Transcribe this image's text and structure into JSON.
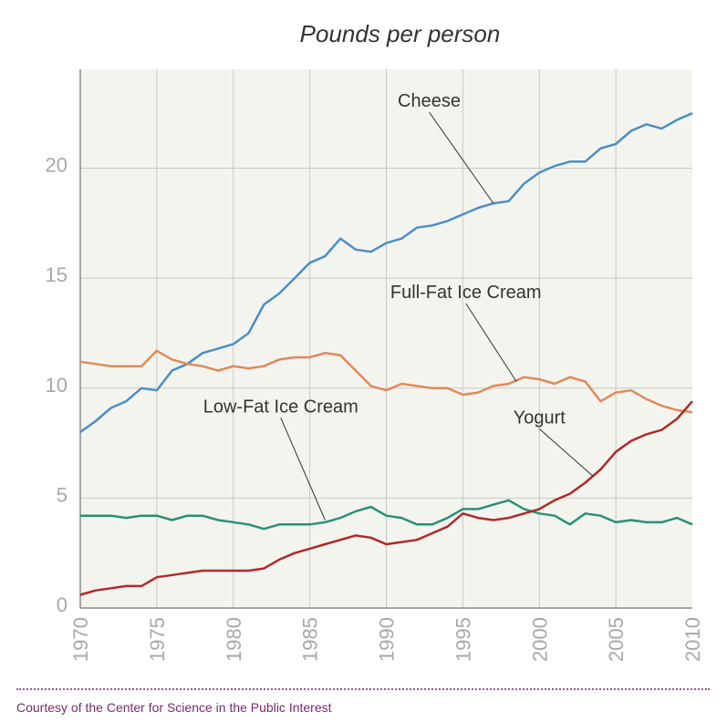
{
  "chart_data": {
    "type": "line",
    "title": "Pounds per person",
    "xlabel": "",
    "ylabel": "",
    "xlim": [
      1970,
      2010
    ],
    "ylim": [
      0,
      24.5
    ],
    "x_ticks": [
      "1970",
      "1975",
      "1980",
      "1985",
      "1990",
      "1995",
      "2000",
      "2005",
      "2010"
    ],
    "y_ticks": [
      "0",
      "5",
      "10",
      "15",
      "20"
    ],
    "grid": true,
    "x": [
      1970,
      1971,
      1972,
      1973,
      1974,
      1975,
      1976,
      1977,
      1978,
      1979,
      1980,
      1981,
      1982,
      1983,
      1984,
      1985,
      1986,
      1987,
      1988,
      1989,
      1990,
      1991,
      1992,
      1993,
      1994,
      1995,
      1996,
      1997,
      1998,
      1999,
      2000,
      2001,
      2002,
      2003,
      2004,
      2005,
      2006,
      2007,
      2008,
      2009,
      2010
    ],
    "series": [
      {
        "name": "Cheese",
        "color": "#4a8fc7",
        "values": [
          8.0,
          8.5,
          9.1,
          9.4,
          10.0,
          9.9,
          10.8,
          11.1,
          11.6,
          11.8,
          12.0,
          12.5,
          13.8,
          14.3,
          15.0,
          15.7,
          16.0,
          16.8,
          16.3,
          16.2,
          16.6,
          16.8,
          17.3,
          17.4,
          17.6,
          17.9,
          18.2,
          18.4,
          18.5,
          19.3,
          19.8,
          20.1,
          20.3,
          20.3,
          20.9,
          21.1,
          21.7,
          22.0,
          21.8,
          22.2,
          22.5
        ]
      },
      {
        "name": "Full-Fat Ice Cream",
        "color": "#e0895a",
        "values": [
          11.2,
          11.1,
          11.0,
          11.0,
          11.0,
          11.7,
          11.3,
          11.1,
          11.0,
          10.8,
          11.0,
          10.9,
          11.0,
          11.3,
          11.4,
          11.4,
          11.6,
          11.5,
          10.8,
          10.1,
          9.9,
          10.2,
          10.1,
          10.0,
          10.0,
          9.7,
          9.8,
          10.1,
          10.2,
          10.5,
          10.4,
          10.2,
          10.5,
          10.3,
          9.4,
          9.8,
          9.9,
          9.5,
          9.2,
          9.0,
          8.9
        ]
      },
      {
        "name": "Low-Fat Ice Cream",
        "color": "#2b9078",
        "values": [
          4.2,
          4.2,
          4.2,
          4.1,
          4.2,
          4.2,
          4.0,
          4.2,
          4.2,
          4.0,
          3.9,
          3.8,
          3.6,
          3.8,
          3.8,
          3.8,
          3.9,
          4.1,
          4.4,
          4.6,
          4.2,
          4.1,
          3.8,
          3.8,
          4.1,
          4.5,
          4.5,
          4.7,
          4.9,
          4.5,
          4.3,
          4.2,
          3.8,
          4.3,
          4.2,
          3.9,
          4.0,
          3.9,
          3.9,
          4.1,
          3.8
        ]
      },
      {
        "name": "Yogurt",
        "color": "#b02a2a",
        "values": [
          0.6,
          0.8,
          0.9,
          1.0,
          1.0,
          1.4,
          1.5,
          1.6,
          1.7,
          1.7,
          1.7,
          1.7,
          1.8,
          2.2,
          2.5,
          2.7,
          2.9,
          3.1,
          3.3,
          3.2,
          2.9,
          3.0,
          3.1,
          3.4,
          3.7,
          4.3,
          4.1,
          4.0,
          4.1,
          4.3,
          4.5,
          4.9,
          5.2,
          5.7,
          6.3,
          7.1,
          7.6,
          7.9,
          8.1,
          8.6,
          9.4
        ]
      }
    ],
    "annotations": [
      {
        "text": "Cheese",
        "series": 0,
        "point_x": 1997,
        "point_y": 18.4,
        "label_x": 1992.8,
        "label_y": 22.8
      },
      {
        "text": "Full-Fat Ice Cream",
        "series": 1,
        "point_x": 1998.5,
        "point_y": 10.3,
        "label_x": 1995.2,
        "label_y": 14.1
      },
      {
        "text": "Low-Fat Ice Cream",
        "series": 2,
        "point_x": 1986,
        "point_y": 4.0,
        "label_x": 1983.1,
        "label_y": 8.9
      },
      {
        "text": "Yogurt",
        "series": 3,
        "point_x": 2003.5,
        "point_y": 6.0,
        "label_x": 2000,
        "label_y": 8.4
      }
    ]
  },
  "credit": "Courtesy of the Center for Science in the Public Interest"
}
